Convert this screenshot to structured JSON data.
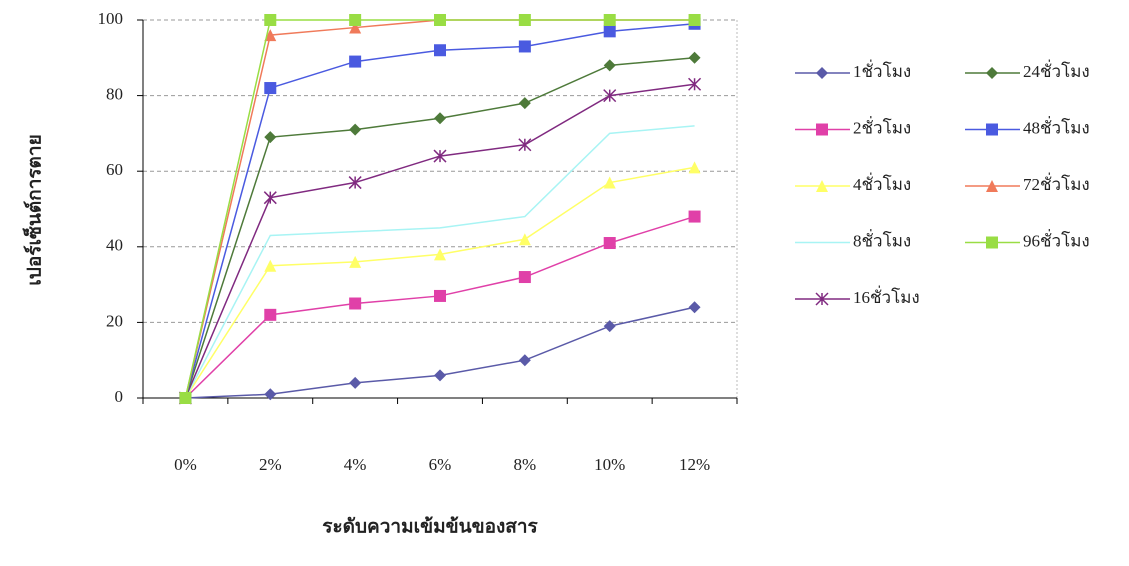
{
  "chart_data": {
    "type": "line",
    "y_label": "เปอร์เซ็นต์การตาย",
    "x_label": "ระดับความเข้มข้นของสาร",
    "categories": [
      "0%",
      "2%",
      "4%",
      "6%",
      "8%",
      "10%",
      "12%"
    ],
    "ylim": [
      0,
      100
    ],
    "yticks": [
      0,
      20,
      40,
      60,
      80,
      100
    ],
    "grid": true,
    "series": [
      {
        "name": "1ชั่วโมง",
        "color": "#5a5aa8",
        "marker": "diamond",
        "values": [
          0,
          1,
          4,
          6,
          10,
          19,
          24
        ]
      },
      {
        "name": "2ชั่วโมง",
        "color": "#e040a8",
        "marker": "square",
        "values": [
          0,
          22,
          25,
          27,
          32,
          41,
          48
        ]
      },
      {
        "name": "4ชั่วโมง",
        "color": "#ffff66",
        "marker": "triangle",
        "values": [
          0,
          35,
          36,
          38,
          42,
          57,
          61
        ]
      },
      {
        "name": "8ชั่วโมง",
        "color": "#a8f4f4",
        "marker": "none",
        "values": [
          0,
          43,
          44,
          45,
          48,
          70,
          72
        ]
      },
      {
        "name": "16ชั่วโมง",
        "color": "#802a80",
        "marker": "star",
        "values": [
          0,
          53,
          57,
          64,
          67,
          80,
          83
        ]
      },
      {
        "name": "24ชั่วโมง",
        "color": "#4e7a3a",
        "marker": "diamond",
        "values": [
          0,
          69,
          71,
          74,
          78,
          88,
          90
        ]
      },
      {
        "name": "48ชั่วโมง",
        "color": "#4a5ae0",
        "marker": "square",
        "values": [
          0,
          82,
          89,
          92,
          93,
          97,
          99
        ]
      },
      {
        "name": "72ชั่วโมง",
        "color": "#f07a5a",
        "marker": "triangle",
        "values": [
          0,
          96,
          98,
          100,
          100,
          100,
          100
        ]
      },
      {
        "name": "96ชั่วโมง",
        "color": "#99dd44",
        "marker": "square",
        "values": [
          0,
          100,
          100,
          100,
          100,
          100,
          100
        ]
      }
    ]
  }
}
